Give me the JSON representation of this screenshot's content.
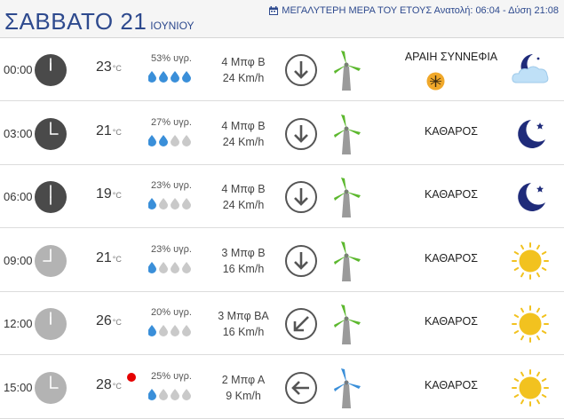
{
  "header": {
    "day_title": "ΣΑΒΒΑΤΟ 21",
    "month": "ΙΟΥΝΙΟΥ",
    "longest_day_text": "ΜΕΓΑΛΥΤΕΡΗ ΜΕΡΑ ΤΟΥ ΕΤΟΥΣ Ανατολή: 06:04 - Δύση 21:08"
  },
  "rows": [
    {
      "time": "00:00",
      "temp": "23",
      "unit": "°C",
      "humidity": "53% υγρ.",
      "drops_filled": 4,
      "wind_beaufort": "4 Μπφ Β",
      "wind_speed": "24 Km/h",
      "arrow_icon": "arrow-down-icon",
      "condition": "ΑΡΑΙΗ ΣΥΝΝΕΦΙΑ",
      "weather_icon": "moon-cloud-icon",
      "clock_color": "#4a4a4a",
      "alert": "mosquito-alert-icon"
    },
    {
      "time": "03:00",
      "temp": "21",
      "unit": "°C",
      "humidity": "27% υγρ.",
      "drops_filled": 2,
      "wind_beaufort": "4 Μπφ Β",
      "wind_speed": "24 Km/h",
      "arrow_icon": "arrow-down-icon",
      "condition": "ΚΑΘΑΡΟΣ",
      "weather_icon": "moon-icon",
      "clock_color": "#4a4a4a"
    },
    {
      "time": "06:00",
      "temp": "19",
      "unit": "°C",
      "humidity": "23% υγρ.",
      "drops_filled": 1,
      "wind_beaufort": "4 Μπφ Β",
      "wind_speed": "24 Km/h",
      "arrow_icon": "arrow-down-icon",
      "condition": "ΚΑΘΑΡΟΣ",
      "weather_icon": "moon-icon",
      "clock_color": "#4a4a4a"
    },
    {
      "time": "09:00",
      "temp": "21",
      "unit": "°C",
      "humidity": "23% υγρ.",
      "drops_filled": 1,
      "wind_beaufort": "3 Μπφ Β",
      "wind_speed": "16 Km/h",
      "arrow_icon": "arrow-down-icon",
      "condition": "ΚΑΘΑΡΟΣ",
      "weather_icon": "sun-icon",
      "clock_color": "#b3b3b3"
    },
    {
      "time": "12:00",
      "temp": "26",
      "unit": "°C",
      "humidity": "20% υγρ.",
      "drops_filled": 1,
      "wind_beaufort": "3 Μπφ ΒΑ",
      "wind_speed": "16 Km/h",
      "arrow_icon": "arrow-down-left-icon",
      "condition": "ΚΑΘΑΡΟΣ",
      "weather_icon": "sun-icon",
      "clock_color": "#b3b3b3"
    },
    {
      "time": "15:00",
      "temp": "28",
      "unit": "°C",
      "humidity": "25% υγρ.",
      "drops_filled": 1,
      "wind_beaufort": "2 Μπφ Α",
      "wind_speed": "9 Km/h",
      "arrow_icon": "arrow-left-icon",
      "condition": "ΚΑΘΑΡΟΣ",
      "weather_icon": "sun-icon",
      "clock_color": "#b3b3b3",
      "heat_alert": "heat-alert-dot"
    }
  ],
  "colors": {
    "title_blue": "#2e4a8e",
    "drop_filled": "#3a8fd9",
    "drop_empty": "#c9c9c9",
    "turbine_green": "#5cb82e",
    "turbine_blue": "#3a8fd9",
    "moon_navy": "#1f2b7a",
    "sun_yellow": "#f2c21f"
  }
}
